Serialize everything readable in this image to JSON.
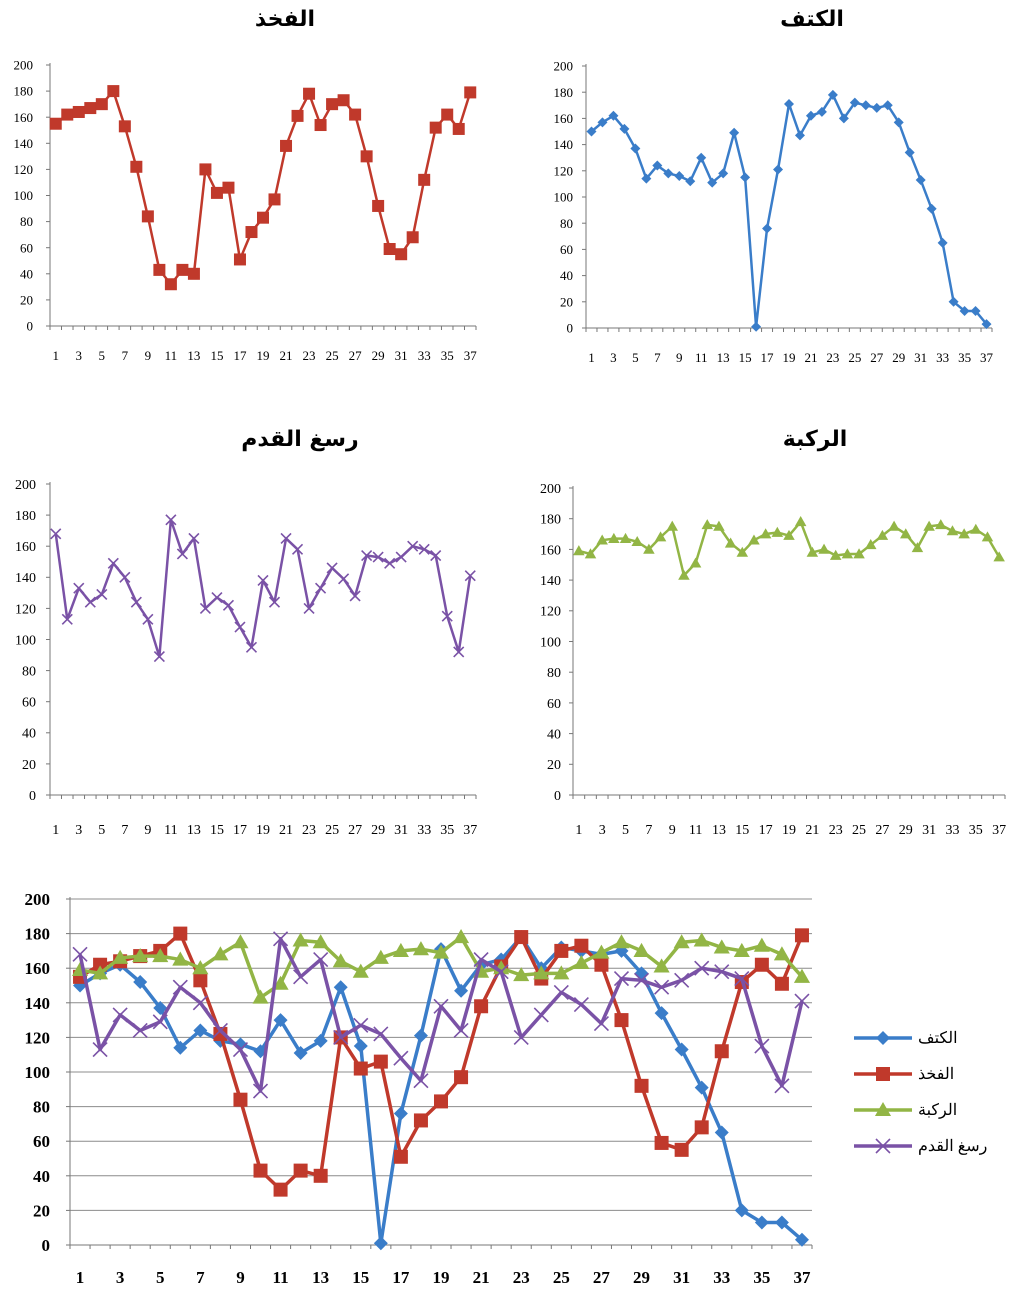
{
  "chart_data": [
    {
      "type": "line",
      "title": "الفخذ",
      "x": [
        1,
        2,
        3,
        4,
        5,
        6,
        7,
        8,
        9,
        10,
        11,
        12,
        13,
        14,
        15,
        16,
        17,
        18,
        19,
        20,
        21,
        22,
        23,
        24,
        25,
        26,
        27,
        28,
        29,
        30,
        31,
        32,
        33,
        34,
        35,
        36,
        37
      ],
      "x_tick_labels": [
        "1",
        "3",
        "5",
        "7",
        "9",
        "11",
        "13",
        "15",
        "17",
        "19",
        "21",
        "23",
        "25",
        "27",
        "29",
        "31",
        "33",
        "35",
        "37"
      ],
      "ylim": [
        0,
        200
      ],
      "y_ticks": [
        "0",
        "20",
        "40",
        "60",
        "80",
        "100",
        "120",
        "140",
        "160",
        "180",
        "200"
      ],
      "grid": false,
      "series": [
        {
          "color": "#c0392b",
          "marker": "square",
          "values": [
            155,
            162,
            164,
            167,
            170,
            180,
            153,
            122,
            84,
            43,
            32,
            43,
            40,
            120,
            102,
            106,
            51,
            72,
            83,
            97,
            138,
            161,
            178,
            154,
            170,
            173,
            162,
            130,
            92,
            59,
            55,
            68,
            112,
            152,
            162,
            151,
            179
          ]
        }
      ]
    },
    {
      "type": "line",
      "title": "الكتف",
      "x": [
        1,
        2,
        3,
        4,
        5,
        6,
        7,
        8,
        9,
        10,
        11,
        12,
        13,
        14,
        15,
        16,
        17,
        18,
        19,
        20,
        21,
        22,
        23,
        24,
        25,
        26,
        27,
        28,
        29,
        30,
        31,
        32,
        33,
        34,
        35,
        36,
        37
      ],
      "x_tick_labels": [
        "1",
        "3",
        "5",
        "7",
        "9",
        "11",
        "13",
        "15",
        "17",
        "19",
        "21",
        "23",
        "25",
        "27",
        "29",
        "31",
        "33",
        "35",
        "37"
      ],
      "ylim": [
        0,
        200
      ],
      "y_ticks": [
        "0",
        "20",
        "40",
        "60",
        "80",
        "100",
        "120",
        "140",
        "160",
        "180",
        "200"
      ],
      "grid": false,
      "series": [
        {
          "color": "#3a7dc9",
          "marker": "diamond",
          "values": [
            150,
            157,
            162,
            152,
            137,
            114,
            124,
            118,
            116,
            112,
            130,
            111,
            118,
            149,
            115,
            1,
            76,
            121,
            171,
            147,
            162,
            165,
            178,
            160,
            172,
            170,
            168,
            170,
            157,
            134,
            113,
            91,
            65,
            20,
            13,
            13,
            3
          ]
        }
      ]
    },
    {
      "type": "line",
      "title": "رسغ القدم",
      "x": [
        1,
        2,
        3,
        4,
        5,
        6,
        7,
        8,
        9,
        10,
        11,
        12,
        13,
        14,
        15,
        16,
        17,
        18,
        19,
        20,
        21,
        22,
        23,
        24,
        25,
        26,
        27,
        28,
        29,
        30,
        31,
        32,
        33,
        34,
        35,
        36,
        37
      ],
      "x_tick_labels": [
        "1",
        "3",
        "5",
        "7",
        "9",
        "11",
        "13",
        "15",
        "17",
        "19",
        "21",
        "23",
        "25",
        "27",
        "29",
        "31",
        "33",
        "35",
        "37"
      ],
      "ylim": [
        0,
        200
      ],
      "y_ticks": [
        "0",
        "20",
        "40",
        "60",
        "80",
        "100",
        "120",
        "140",
        "160",
        "180",
        "200"
      ],
      "grid": false,
      "series": [
        {
          "color": "#7a52a6",
          "marker": "x",
          "values": [
            168,
            113,
            133,
            124,
            129,
            149,
            140,
            124,
            113,
            89,
            177,
            155,
            165,
            120,
            127,
            122,
            108,
            95,
            138,
            124,
            165,
            158,
            120,
            133,
            146,
            139,
            128,
            154,
            153,
            149,
            153,
            160,
            158,
            154,
            115,
            92,
            141
          ]
        }
      ]
    },
    {
      "type": "line",
      "title": "الركبة",
      "x": [
        1,
        2,
        3,
        4,
        5,
        6,
        7,
        8,
        9,
        10,
        11,
        12,
        13,
        14,
        15,
        16,
        17,
        18,
        19,
        20,
        21,
        22,
        23,
        24,
        25,
        26,
        27,
        28,
        29,
        30,
        31,
        32,
        33,
        34,
        35,
        36,
        37
      ],
      "x_tick_labels": [
        "1",
        "3",
        "5",
        "7",
        "9",
        "11",
        "13",
        "15",
        "17",
        "19",
        "21",
        "23",
        "25",
        "27",
        "29",
        "31",
        "33",
        "35",
        "37"
      ],
      "ylim": [
        0,
        200
      ],
      "y_ticks": [
        "0",
        "20",
        "40",
        "60",
        "80",
        "100",
        "120",
        "140",
        "160",
        "180",
        "200"
      ],
      "grid": false,
      "series": [
        {
          "color": "#92b545",
          "marker": "triangle",
          "values": [
            159,
            157,
            166,
            167,
            167,
            165,
            160,
            168,
            175,
            143,
            151,
            176,
            175,
            164,
            158,
            166,
            170,
            171,
            169,
            178,
            158,
            160,
            156,
            157,
            157,
            163,
            169,
            175,
            170,
            161,
            175,
            176,
            172,
            170,
            173,
            168,
            155
          ]
        }
      ]
    },
    {
      "type": "line",
      "title": "",
      "x": [
        1,
        2,
        3,
        4,
        5,
        6,
        7,
        8,
        9,
        10,
        11,
        12,
        13,
        14,
        15,
        16,
        17,
        18,
        19,
        20,
        21,
        22,
        23,
        24,
        25,
        26,
        27,
        28,
        29,
        30,
        31,
        32,
        33,
        34,
        35,
        36,
        37
      ],
      "x_tick_labels": [
        "1",
        "3",
        "5",
        "7",
        "9",
        "11",
        "13",
        "15",
        "17",
        "19",
        "21",
        "23",
        "25",
        "27",
        "29",
        "31",
        "33",
        "35",
        "37"
      ],
      "ylim": [
        0,
        200
      ],
      "y_ticks": [
        "0",
        "20",
        "40",
        "60",
        "80",
        "100",
        "120",
        "140",
        "160",
        "180",
        "200"
      ],
      "grid": true,
      "legend": "right",
      "series": [
        {
          "name": "الكتف",
          "color": "#3a7dc9",
          "marker": "diamond",
          "values": [
            150,
            157,
            162,
            152,
            137,
            114,
            124,
            118,
            116,
            112,
            130,
            111,
            118,
            149,
            115,
            1,
            76,
            121,
            171,
            147,
            162,
            165,
            178,
            160,
            172,
            170,
            168,
            170,
            157,
            134,
            113,
            91,
            65,
            20,
            13,
            13,
            3
          ]
        },
        {
          "name": "الفخذ",
          "color": "#c0392b",
          "marker": "square",
          "values": [
            155,
            162,
            164,
            167,
            170,
            180,
            153,
            122,
            84,
            43,
            32,
            43,
            40,
            120,
            102,
            106,
            51,
            72,
            83,
            97,
            138,
            161,
            178,
            154,
            170,
            173,
            162,
            130,
            92,
            59,
            55,
            68,
            112,
            152,
            162,
            151,
            179
          ]
        },
        {
          "name": "الركبة",
          "color": "#92b545",
          "marker": "triangle",
          "values": [
            159,
            157,
            166,
            167,
            167,
            165,
            160,
            168,
            175,
            143,
            151,
            176,
            175,
            164,
            158,
            166,
            170,
            171,
            169,
            178,
            158,
            160,
            156,
            157,
            157,
            163,
            169,
            175,
            170,
            161,
            175,
            176,
            172,
            170,
            173,
            168,
            155
          ]
        },
        {
          "name": "رسغ القدم",
          "color": "#7a52a6",
          "marker": "x",
          "values": [
            168,
            113,
            133,
            124,
            129,
            149,
            140,
            124,
            113,
            89,
            177,
            155,
            165,
            120,
            127,
            122,
            108,
            95,
            138,
            124,
            165,
            158,
            120,
            133,
            146,
            139,
            128,
            154,
            153,
            149,
            153,
            160,
            158,
            154,
            115,
            92,
            141
          ]
        }
      ]
    }
  ]
}
